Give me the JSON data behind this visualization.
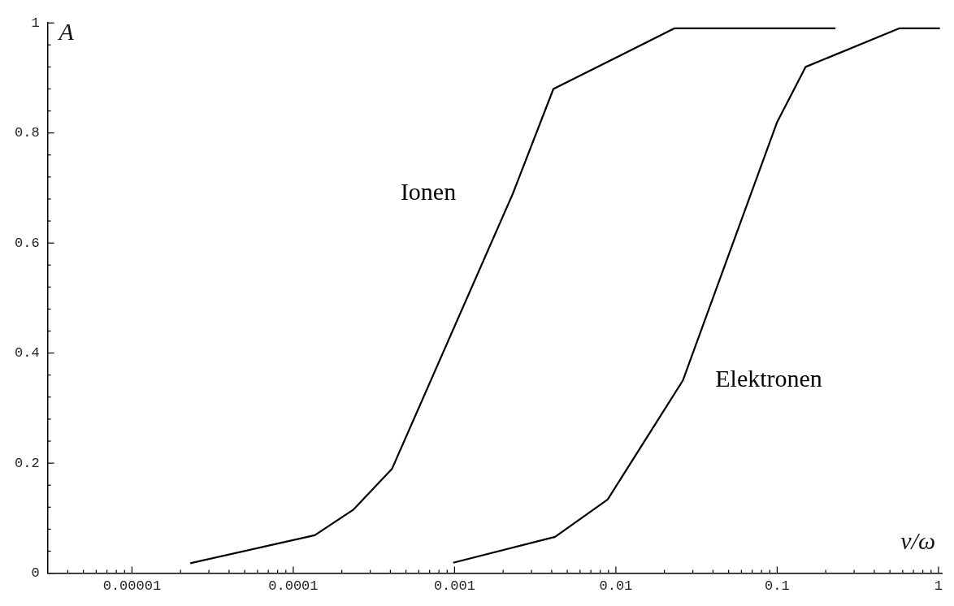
{
  "chart_data": {
    "type": "line",
    "xlabel": "ν/ω",
    "ylabel": "A",
    "log": "x",
    "grid": false,
    "legend": false,
    "marker": "none",
    "line_style": "solid",
    "xlim": [
      3e-06,
      1.05
    ],
    "ylim": [
      0,
      1
    ],
    "xticks": [
      {
        "value": 4e-06,
        "label": null
      },
      {
        "value": 5e-06,
        "label": null
      },
      {
        "value": 6e-06,
        "label": null
      },
      {
        "value": 7e-06,
        "label": null
      },
      {
        "value": 8e-06,
        "label": null
      },
      {
        "value": 9e-06,
        "label": null
      },
      {
        "value": 1e-05,
        "label": "0.00001"
      },
      {
        "value": 2e-05,
        "label": null
      },
      {
        "value": 3e-05,
        "label": null
      },
      {
        "value": 4e-05,
        "label": null
      },
      {
        "value": 5e-05,
        "label": null
      },
      {
        "value": 6e-05,
        "label": null
      },
      {
        "value": 7e-05,
        "label": null
      },
      {
        "value": 8e-05,
        "label": null
      },
      {
        "value": 9e-05,
        "label": null
      },
      0.0001,
      {
        "value": 0.0002,
        "label": null
      },
      {
        "value": 0.0003,
        "label": null
      },
      {
        "value": 0.0004,
        "label": null
      },
      {
        "value": 0.0005,
        "label": null
      },
      {
        "value": 0.0006,
        "label": null
      },
      {
        "value": 0.0007,
        "label": null
      },
      {
        "value": 0.0008,
        "label": null
      },
      {
        "value": 0.0009,
        "label": null
      },
      0.001,
      {
        "value": 0.002,
        "label": null
      },
      {
        "value": 0.003,
        "label": null
      },
      {
        "value": 0.004,
        "label": null
      },
      {
        "value": 0.005,
        "label": null
      },
      {
        "value": 0.006,
        "label": null
      },
      {
        "value": 0.007,
        "label": null
      },
      {
        "value": 0.008,
        "label": null
      },
      {
        "value": 0.009,
        "label": null
      },
      0.01,
      {
        "value": 0.02,
        "label": null
      },
      {
        "value": 0.03,
        "label": null
      },
      {
        "value": 0.04,
        "label": null
      },
      {
        "value": 0.05,
        "label": null
      },
      {
        "value": 0.06,
        "label": null
      },
      {
        "value": 0.07,
        "label": null
      },
      {
        "value": 0.08,
        "label": null
      },
      {
        "value": 0.09,
        "label": null
      },
      0.1,
      {
        "value": 0.2,
        "label": null
      },
      {
        "value": 0.3,
        "label": null
      },
      {
        "value": 0.4,
        "label": null
      },
      {
        "value": 0.5,
        "label": null
      },
      {
        "value": 0.6,
        "label": null
      },
      {
        "value": 0.7,
        "label": null
      },
      {
        "value": 0.8,
        "label": null
      },
      {
        "value": 0.9,
        "label": null
      },
      1
    ],
    "yticks": [
      0,
      {
        "value": 0.04,
        "label": null
      },
      {
        "value": 0.08,
        "label": null
      },
      {
        "value": 0.12,
        "label": null
      },
      {
        "value": 0.16,
        "label": null
      },
      0.2,
      {
        "value": 0.24,
        "label": null
      },
      {
        "value": 0.28,
        "label": null
      },
      {
        "value": 0.32,
        "label": null
      },
      {
        "value": 0.36,
        "label": null
      },
      0.4,
      {
        "value": 0.44,
        "label": null
      },
      {
        "value": 0.48,
        "label": null
      },
      {
        "value": 0.52,
        "label": null
      },
      {
        "value": 0.56,
        "label": null
      },
      0.6,
      {
        "value": 0.64,
        "label": null
      },
      {
        "value": 0.68,
        "label": null
      },
      {
        "value": 0.72,
        "label": null
      },
      {
        "value": 0.76,
        "label": null
      },
      0.8,
      {
        "value": 0.84,
        "label": null
      },
      {
        "value": 0.88,
        "label": null
      },
      {
        "value": 0.92,
        "label": null
      },
      {
        "value": 0.96,
        "label": null
      },
      1
    ],
    "series": [
      {
        "name": "Ionen",
        "color": "#000000",
        "x": [
          2.3e-05,
          0.000136,
          0.000235,
          0.00041,
          0.0023,
          0.0041,
          0.023,
          0.23
        ],
        "values": [
          0.018,
          0.069,
          0.115,
          0.19,
          0.69,
          0.88,
          0.99,
          0.99
        ]
      },
      {
        "name": "Elektronen",
        "color": "#000000",
        "x": [
          0.00098,
          0.0042,
          0.0089,
          0.026,
          0.1,
          0.15,
          0.57,
          1.02
        ],
        "values": [
          0.019,
          0.066,
          0.134,
          0.35,
          0.82,
          0.92,
          0.99,
          0.99
        ]
      }
    ]
  }
}
